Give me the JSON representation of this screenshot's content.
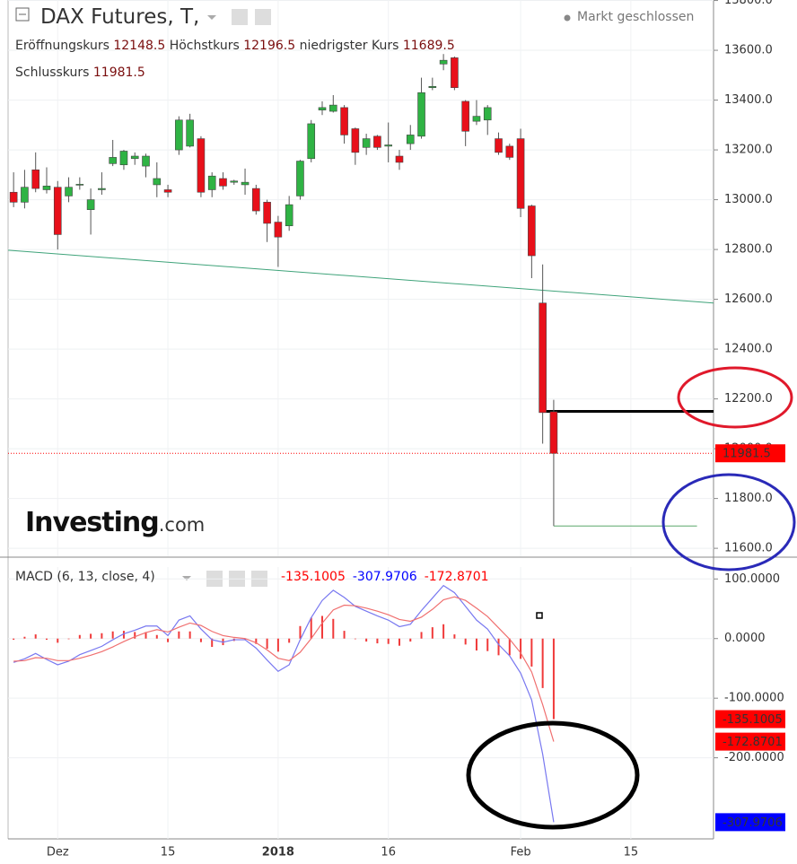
{
  "chart_data": [
    {
      "type": "candlestick",
      "title": "DAX Futures, T,",
      "status": "Markt geschlossen",
      "ohlc_labels": [
        "Eröffnungskurs",
        "Höchstkurs",
        "niedrigster Kurs",
        "Schlusskurs"
      ],
      "open": [
        13030,
        12990,
        13120,
        13040,
        13050,
        13015,
        13060,
        12960,
        13040,
        13145,
        13140,
        13165,
        13135,
        13060,
        13040,
        13200,
        13215,
        13245,
        13040,
        13085,
        13070,
        13060,
        13045,
        12990,
        12910,
        12895,
        13015,
        13165,
        13360,
        13355,
        13370,
        13285,
        13210,
        13255,
        13215,
        13175,
        13225,
        13255,
        13450,
        13545,
        13570,
        13395,
        13315,
        13320,
        13245,
        13215,
        13245,
        12975,
        12585,
        12148.5,
        null,
        null,
        null,
        null,
        null,
        null,
        null,
        null,
        null,
        null,
        null,
        null,
        null,
        null
      ],
      "high": [
        13110,
        13120,
        13190,
        13130,
        13075,
        13090,
        13090,
        13045,
        13110,
        13240,
        13200,
        13190,
        13185,
        13150,
        13060,
        13335,
        13345,
        13255,
        13110,
        13110,
        13080,
        13125,
        13060,
        13000,
        12935,
        13015,
        13160,
        13320,
        13395,
        13420,
        13380,
        13290,
        13265,
        13260,
        13310,
        13200,
        13300,
        13490,
        13490,
        13585,
        13575,
        13400,
        13400,
        13380,
        13270,
        13225,
        13285,
        12980,
        12740,
        12196.5,
        null,
        null,
        null,
        null,
        null,
        null,
        null,
        null,
        null,
        null,
        null,
        null,
        null,
        null
      ],
      "low": [
        12970,
        12965,
        13030,
        13025,
        12800,
        12990,
        13040,
        12860,
        13020,
        13135,
        13120,
        13140,
        13090,
        13010,
        13010,
        13180,
        13210,
        13010,
        13010,
        13040,
        13060,
        13020,
        12940,
        12830,
        12730,
        12875,
        13000,
        13150,
        13340,
        13350,
        13225,
        13140,
        13180,
        13200,
        13150,
        13120,
        13200,
        13245,
        13440,
        13520,
        13440,
        13215,
        13300,
        13260,
        13180,
        13160,
        12930,
        12685,
        12020,
        11689.5,
        null,
        null,
        null,
        null,
        null,
        null,
        null,
        null,
        null,
        null,
        null,
        null,
        null,
        null
      ],
      "close": [
        12990,
        13050,
        13045,
        13055,
        12860,
        13050,
        13062,
        13000,
        13045,
        13170,
        13195,
        13175,
        13175,
        13085,
        13030,
        13320,
        13320,
        13030,
        13095,
        13055,
        13075,
        13070,
        12955,
        12905,
        12850,
        12980,
        13155,
        13305,
        13370,
        13380,
        13260,
        13190,
        13245,
        13210,
        13220,
        13150,
        13260,
        13430,
        13455,
        13560,
        13450,
        13275,
        13335,
        13370,
        13190,
        13170,
        12965,
        12775,
        12145,
        11981.5,
        null,
        null,
        null,
        null,
        null,
        null,
        null,
        null,
        null,
        null,
        null,
        null,
        null,
        null
      ],
      "up_color": "#2fb344",
      "down_color": "#e8101a",
      "price_line_color": "#ff0000",
      "ylim": [
        11568,
        13802
      ],
      "yticks": [
        {
          "value": 11600,
          "label": "11600.0"
        },
        {
          "value": 11800,
          "label": "11800.0"
        },
        {
          "value": 12000,
          "label": "12000.0"
        },
        {
          "value": 12200,
          "label": "12200.0"
        },
        {
          "value": 12400,
          "label": "12400.0"
        },
        {
          "value": 12600,
          "label": "12600.0"
        },
        {
          "value": 12800,
          "label": "12800.0"
        },
        {
          "value": 13000,
          "label": "13000.0"
        },
        {
          "value": 13200,
          "label": "13200.0"
        },
        {
          "value": 13400,
          "label": "13400.0"
        },
        {
          "value": 13600,
          "label": "13600.0"
        },
        {
          "value": 13800,
          "label": "13800.0"
        }
      ],
      "grid": true,
      "lines": [
        {
          "x": [
            -0.5,
            63.5
          ],
          "y": [
            12797,
            12585
          ],
          "color": "#3fa37a",
          "width": 1
        },
        {
          "x": [
            48,
            63.5
          ],
          "y": [
            12150,
            12150
          ],
          "color": "#000000",
          "width": 3
        },
        {
          "x": [
            49,
            62
          ],
          "y": [
            11689.5,
            11689.5
          ],
          "color": "#5aa86a",
          "width": 1
        }
      ]
    },
    {
      "type": "macd",
      "title": "MACD (6, 13, close, 4)",
      "categories": [
        null,
        null,
        null,
        null,
        "Dez",
        null,
        null,
        null,
        null,
        null,
        null,
        null,
        null,
        null,
        "15",
        null,
        null,
        null,
        null,
        null,
        null,
        null,
        null,
        null,
        "2018",
        null,
        null,
        null,
        null,
        null,
        null,
        null,
        null,
        null,
        "16",
        null,
        null,
        null,
        null,
        null,
        null,
        null,
        null,
        null,
        null,
        null,
        "Feb",
        null,
        null,
        null,
        null,
        null,
        null,
        null,
        null,
        null,
        "15",
        null,
        null,
        null,
        null,
        null,
        null,
        null
      ],
      "series": [
        {
          "style": "bar",
          "color": "#f03a3a",
          "tag_color": "#ff0000",
          "values": [
            -2,
            3,
            7,
            -2,
            -7,
            -1,
            6,
            8,
            9,
            12,
            13,
            11,
            11,
            6,
            -6,
            12,
            12,
            -6,
            -14,
            -11,
            -4,
            -2,
            -9,
            -17,
            -22,
            -7,
            21,
            35,
            38,
            33,
            13,
            -1,
            -5,
            -8,
            -9,
            -12,
            -5,
            11,
            19,
            24,
            7,
            -10,
            -20,
            -21,
            -28,
            -28,
            -34,
            -47,
            -83,
            -135.1005,
            null,
            null,
            null,
            null,
            null,
            null,
            null,
            null,
            null,
            null,
            null,
            null,
            null,
            null
          ]
        },
        {
          "style": "line",
          "color": "#7878f0",
          "tag_color": "#0000ff",
          "values": [
            -40,
            -34,
            -25,
            -35,
            -44,
            -38,
            -27,
            -20,
            -13,
            -2,
            8,
            14,
            21,
            21,
            5,
            31,
            38,
            16,
            -2,
            -6,
            -2,
            -2,
            -16,
            -36,
            -55,
            -44,
            -2,
            35,
            64,
            81,
            69,
            54,
            46,
            38,
            31,
            20,
            24,
            47,
            68,
            89,
            77,
            54,
            31,
            16,
            -10,
            -29,
            -58,
            -103,
            -194,
            -307.9706,
            null,
            null,
            null,
            null,
            null,
            null,
            null,
            null,
            null,
            null,
            null,
            null,
            null,
            null
          ]
        },
        {
          "style": "line",
          "color": "#f07070",
          "tag_color": "#ff0000",
          "values": [
            -38,
            -37,
            -32,
            -33,
            -37,
            -37,
            -33,
            -28,
            -22,
            -14,
            -5,
            3,
            10,
            15,
            11,
            19,
            26,
            22,
            12,
            5,
            2,
            0,
            -7,
            -19,
            -33,
            -37,
            -23,
            0,
            26,
            48,
            56,
            55,
            51,
            46,
            40,
            32,
            29,
            36,
            49,
            65,
            70,
            64,
            51,
            37,
            18,
            -1,
            -24,
            -56,
            -111,
            -172.8701,
            null,
            null,
            null,
            null,
            null,
            null,
            null,
            null,
            null,
            null,
            null,
            null,
            null,
            null
          ]
        }
      ],
      "header_order": [
        0,
        1,
        2
      ],
      "ylim": [
        -336,
        120
      ],
      "yticks": [
        {
          "value": -200,
          "label": "-200.0000"
        },
        {
          "value": -100,
          "label": "-100.0000"
        },
        {
          "value": 0,
          "label": "0.0000"
        },
        {
          "value": 100,
          "label": "100.0000"
        }
      ],
      "grid": true
    }
  ],
  "watermark": {
    "name": "Investing",
    "suffix": ".com"
  }
}
